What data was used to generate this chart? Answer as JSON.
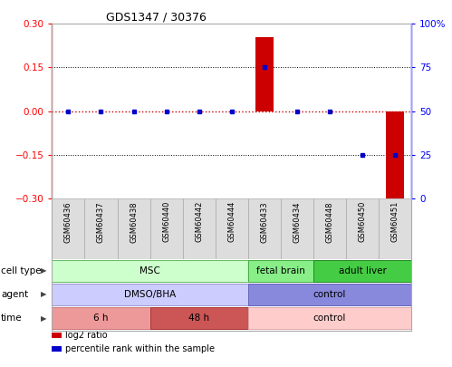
{
  "title": "GDS1347 / 30376",
  "samples": [
    "GSM60436",
    "GSM60437",
    "GSM60438",
    "GSM60440",
    "GSM60442",
    "GSM60444",
    "GSM60433",
    "GSM60434",
    "GSM60448",
    "GSM60450",
    "GSM60451"
  ],
  "log2_ratio": [
    0.0,
    0.0,
    0.0,
    0.0,
    0.0,
    0.0,
    0.255,
    0.0,
    0.0,
    0.0,
    -0.305
  ],
  "percentile_rank": [
    50,
    50,
    50,
    50,
    50,
    50,
    75,
    50,
    50,
    25,
    25
  ],
  "ylim": [
    -0.3,
    0.3
  ],
  "y2lim": [
    0,
    100
  ],
  "yticks": [
    -0.3,
    -0.15,
    0,
    0.15,
    0.3
  ],
  "y2ticks": [
    0,
    25,
    50,
    75,
    100
  ],
  "y2ticklabels": [
    "0",
    "25",
    "50",
    "75",
    "100%"
  ],
  "bar_color": "#cc0000",
  "dot_color": "#0000cc",
  "cell_type_groups": [
    {
      "label": "MSC",
      "start": 0,
      "end": 6,
      "color": "#ccffcc",
      "edgecolor": "#66bb66"
    },
    {
      "label": "fetal brain",
      "start": 6,
      "end": 8,
      "color": "#88ee88",
      "edgecolor": "#44aa44"
    },
    {
      "label": "adult liver",
      "start": 8,
      "end": 11,
      "color": "#44cc44",
      "edgecolor": "#228822"
    }
  ],
  "agent_groups": [
    {
      "label": "DMSO/BHA",
      "start": 0,
      "end": 6,
      "color": "#ccccff",
      "edgecolor": "#9999cc"
    },
    {
      "label": "control",
      "start": 6,
      "end": 11,
      "color": "#8888dd",
      "edgecolor": "#6666bb"
    }
  ],
  "time_groups": [
    {
      "label": "6 h",
      "start": 0,
      "end": 3,
      "color": "#ee9999",
      "edgecolor": "#cc7777"
    },
    {
      "label": "48 h",
      "start": 3,
      "end": 6,
      "color": "#cc5555",
      "edgecolor": "#aa3333"
    },
    {
      "label": "control",
      "start": 6,
      "end": 11,
      "color": "#ffcccc",
      "edgecolor": "#ddaaaa"
    }
  ],
  "row_labels": [
    "cell type",
    "agent",
    "time"
  ],
  "legend_items": [
    {
      "color": "#cc0000",
      "label": "log2 ratio"
    },
    {
      "color": "#0000cc",
      "label": "percentile rank within the sample"
    }
  ],
  "xtick_bg": "#dddddd",
  "xtick_edge": "#aaaaaa"
}
